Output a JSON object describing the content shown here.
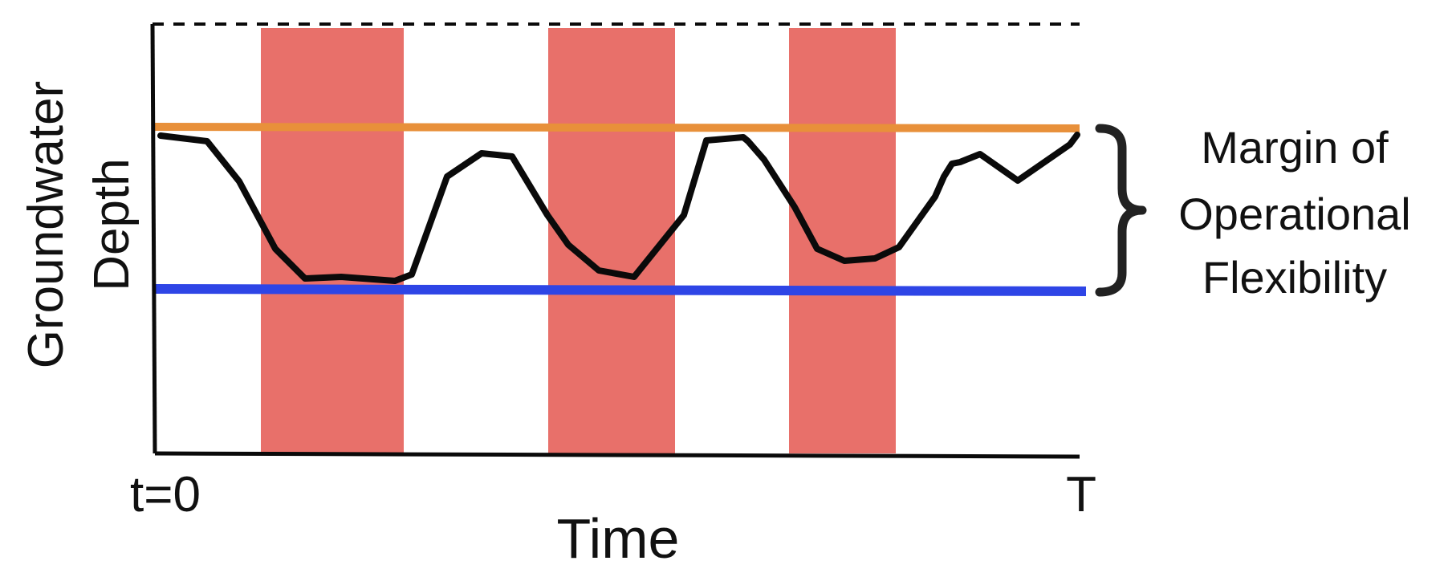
{
  "diagram": {
    "y_axis_label_line1": "Groundwater",
    "y_axis_label_line2": "Depth",
    "x_axis_label": "Time",
    "x_start_label": "t=0",
    "x_end_label": "T",
    "bracket_label_line1": "Margin of",
    "bracket_label_line2": "Operational",
    "bracket_label_line3": "Flexibility",
    "colors": {
      "shaded_period": "#E8706A",
      "upper_line": "#E8903A",
      "lower_line": "#2E45E6",
      "depth_curve": "#0a0a0a",
      "axes": "#0a0a0a",
      "bracket": "#222222"
    }
  }
}
